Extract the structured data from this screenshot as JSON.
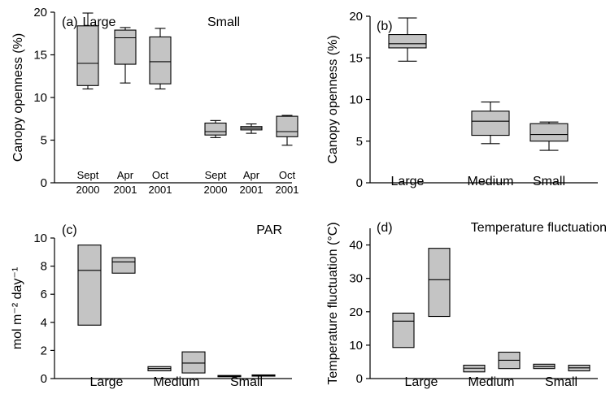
{
  "chart_data": [
    {
      "panel": "(a)",
      "type": "boxplot",
      "annotations": [
        "Large",
        "Small"
      ],
      "ylabel": "Canopy openness (%)",
      "ylim": [
        0,
        20
      ],
      "yticks": [
        0,
        5,
        10,
        15,
        20
      ],
      "categories": [
        [
          "Sept",
          "2000"
        ],
        [
          "Apr",
          "2001"
        ],
        [
          "Oct",
          "2001"
        ],
        [
          "Sept",
          "2000"
        ],
        [
          "Apr",
          "2001"
        ],
        [
          "Oct",
          "2001"
        ]
      ],
      "boxes": [
        {
          "whisker_low": 11.0,
          "q1": 11.4,
          "median": 14.0,
          "q3": 18.4,
          "whisker_high": 19.9
        },
        {
          "whisker_low": 11.7,
          "q1": 13.9,
          "median": 17.0,
          "q3": 17.9,
          "whisker_high": 18.2
        },
        {
          "whisker_low": 11.0,
          "q1": 11.6,
          "median": 14.2,
          "q3": 17.1,
          "whisker_high": 18.1
        },
        {
          "whisker_low": 5.3,
          "q1": 5.6,
          "median": 6.0,
          "q3": 7.0,
          "whisker_high": 7.3
        },
        {
          "whisker_low": 5.8,
          "q1": 6.2,
          "median": 6.4,
          "q3": 6.6,
          "whisker_high": 6.9
        },
        {
          "whisker_low": 4.4,
          "q1": 5.4,
          "median": 6.0,
          "q3": 7.8,
          "whisker_high": 7.9
        }
      ]
    },
    {
      "panel": "(b)",
      "type": "boxplot",
      "annotations": [],
      "ylabel": "Canopy openness (%)",
      "ylim": [
        0,
        20
      ],
      "yticks": [
        0,
        5,
        10,
        15,
        20
      ],
      "categories": [
        [
          "Large"
        ],
        [
          "Medium"
        ],
        [
          "Small"
        ]
      ],
      "boxes": [
        {
          "whisker_low": 14.6,
          "q1": 16.2,
          "median": 16.7,
          "q3": 17.8,
          "whisker_high": 19.8
        },
        {
          "whisker_low": 4.7,
          "q1": 5.7,
          "median": 7.4,
          "q3": 8.6,
          "whisker_high": 9.7
        },
        {
          "whisker_low": 3.9,
          "q1": 5.0,
          "median": 5.8,
          "q3": 7.1,
          "whisker_high": 7.3
        }
      ]
    },
    {
      "panel": "(c)",
      "type": "boxplot",
      "annotations": [
        "PAR"
      ],
      "ylabel": "mol m⁻² day⁻¹",
      "ylim": [
        0,
        10
      ],
      "yticks": [
        0,
        2,
        4,
        6,
        8,
        10
      ],
      "categories": [
        [
          "Large"
        ],
        [
          "Medium"
        ],
        [
          "Small"
        ]
      ],
      "boxes": [
        {
          "group": 0,
          "q1": 3.8,
          "median": 7.7,
          "q3": 9.5
        },
        {
          "group": 0,
          "q1": 7.5,
          "median": 8.3,
          "q3": 8.6
        },
        {
          "group": 1,
          "q1": 0.55,
          "median": 0.72,
          "q3": 0.85
        },
        {
          "group": 1,
          "q1": 0.4,
          "median": 1.1,
          "q3": 1.9
        },
        {
          "group": 2,
          "q1": 0.13,
          "median": 0.17,
          "q3": 0.22
        },
        {
          "group": 2,
          "q1": 0.18,
          "median": 0.21,
          "q3": 0.26
        }
      ]
    },
    {
      "panel": "(d)",
      "type": "boxplot",
      "annotations": [
        "Temperature fluctuation"
      ],
      "ylabel": "Temperature fluctuation (°C)",
      "ylim": [
        0,
        45
      ],
      "yticks": [
        0,
        10,
        20,
        30,
        40
      ],
      "categories": [
        [
          "Large"
        ],
        [
          "Medium"
        ],
        [
          "Small"
        ]
      ],
      "boxes": [
        {
          "group": 0,
          "q1": 9.3,
          "median": 17.2,
          "q3": 19.6
        },
        {
          "group": 0,
          "q1": 18.6,
          "median": 29.6,
          "q3": 39.0
        },
        {
          "group": 1,
          "q1": 2.0,
          "median": 3.1,
          "q3": 4.0
        },
        {
          "group": 1,
          "q1": 3.0,
          "median": 5.5,
          "q3": 7.9
        },
        {
          "group": 2,
          "q1": 3.0,
          "median": 3.6,
          "q3": 4.3
        },
        {
          "group": 2,
          "q1": 2.3,
          "median": 3.2,
          "q3": 4.0
        }
      ]
    }
  ]
}
